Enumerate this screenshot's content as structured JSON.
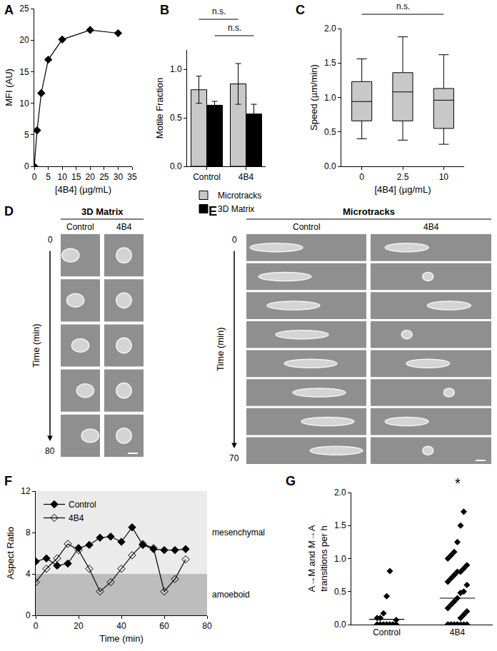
{
  "chart_data": [
    {
      "type": "line",
      "title": "A",
      "x": [
        0,
        1,
        2.5,
        5,
        10,
        20,
        30
      ],
      "values": [
        0,
        5.7,
        11.6,
        16.9,
        20.1,
        21.6,
        21.1
      ],
      "color": "#000000",
      "marker": "diamond",
      "x_label": "[4B4] (µg/mL)",
      "y_label": "MFI (AU)",
      "xlim": [
        0,
        35
      ],
      "xticks": [
        0,
        5,
        10,
        15,
        20,
        25,
        30,
        35
      ],
      "ylim": [
        0,
        25
      ],
      "yticks": [
        0,
        5,
        10,
        15,
        20,
        25
      ]
    },
    {
      "type": "bar",
      "title": "B",
      "categories": [
        "Control",
        "4B4"
      ],
      "series": [
        {
          "name": "Microtracks",
          "color": "#c8c8c8",
          "values": [
            0.79,
            0.85
          ],
          "errors": [
            0.14,
            0.21
          ]
        },
        {
          "name": "3D Matrix",
          "color": "#000000",
          "values": [
            0.63,
            0.54
          ],
          "errors": [
            0.04,
            0.1
          ]
        }
      ],
      "y_label": "Motile Fraction",
      "ylim": [
        0,
        1.2
      ],
      "yticks": [
        {
          "value": 0,
          "label": "0.0"
        },
        {
          "value": 0.5,
          "label": "0.5"
        },
        {
          "value": 1,
          "label": "1.0"
        }
      ],
      "legend": "bottom right",
      "annotations": [
        {
          "text": "n.s.",
          "series": "Microtracks"
        },
        {
          "text": "n.s.",
          "series": "3D Matrix"
        }
      ]
    },
    {
      "type": "box",
      "title": "C",
      "categories": [
        "0",
        "2.5",
        "10"
      ],
      "boxes": {
        "whisker_low": [
          0.4,
          0.38,
          0.32
        ],
        "q1": [
          0.66,
          0.66,
          0.55
        ],
        "median": [
          0.94,
          1.08,
          0.96
        ],
        "q3": [
          1.23,
          1.36,
          1.13
        ],
        "whisker_high": [
          1.56,
          1.88,
          1.62
        ]
      },
      "color": "#c8c8c8",
      "x_label": "[4B4] (µg/mL)",
      "y_label": "Speed (µm/min)",
      "ylim": [
        0,
        2
      ],
      "yticks": [
        {
          "value": 0,
          "label": "0.0"
        },
        {
          "value": 0.5,
          "label": "0.5"
        },
        {
          "value": 1,
          "label": "1.0"
        },
        {
          "value": 1.5,
          "label": "1.5"
        },
        {
          "value": 2,
          "label": "2.0"
        }
      ],
      "annotations": [
        {
          "text": "n.s."
        }
      ]
    },
    {
      "type": "line",
      "title": "F",
      "x": [
        0,
        5,
        10,
        15,
        20,
        25,
        30,
        35,
        40,
        45,
        50,
        55,
        60,
        65,
        70
      ],
      "series": [
        {
          "name": "Control",
          "color": "#000000",
          "marker": "diamond",
          "values": [
            5.2,
            5.5,
            4.8,
            5.0,
            6.5,
            6.8,
            7.5,
            7.6,
            7.1,
            8.5,
            6.8,
            6.4,
            6.3,
            6.3,
            6.4
          ]
        },
        {
          "name": "4B4",
          "color": "#000000",
          "marker": "diamond-open",
          "values": [
            3.2,
            4.5,
            5.5,
            6.9,
            6.3,
            4.5,
            2.3,
            3.2,
            4.5,
            5.8,
            6.9,
            6.5,
            2.3,
            3.5,
            5.4
          ]
        }
      ],
      "x_label": "Time (min)",
      "y_label": "Aspect Ratio",
      "xlim": [
        0,
        80
      ],
      "xticks": [
        0,
        20,
        40,
        60,
        80
      ],
      "ylim": [
        0,
        12
      ],
      "yticks": [
        0,
        4,
        8,
        12
      ],
      "legend": "upper left",
      "regions": [
        {
          "label": "mesenchymal",
          "ymin": 4,
          "ymax": 12,
          "color": "#ebebeb"
        },
        {
          "label": "amoeboid",
          "ymin": 0,
          "ymax": 4,
          "color": "#bdbdbd"
        }
      ]
    },
    {
      "type": "strip",
      "title": "G",
      "categories": [
        "Control",
        "4B4"
      ],
      "values": [
        [
          0,
          0,
          0,
          0,
          0,
          0,
          0,
          0,
          0,
          0,
          0,
          0,
          0,
          0,
          0,
          0,
          0,
          0,
          0,
          0,
          0.07,
          0.1,
          0.1,
          0.17,
          0.43,
          0.81
        ],
        [
          0,
          0,
          0,
          0,
          0,
          0,
          0,
          0,
          0,
          0,
          0,
          0,
          0,
          0,
          0,
          0,
          0,
          0,
          0.1,
          0.15,
          0.2,
          0.25,
          0.3,
          0.35,
          0.4,
          0.48,
          0.5,
          0.6,
          0.65,
          0.7,
          0.75,
          0.8,
          0.8,
          0.85,
          0.9,
          1.0,
          1.05,
          1.1,
          1.25,
          1.5,
          1.71
        ]
      ],
      "means": [
        0.08,
        0.4
      ],
      "color": "#000000",
      "marker": "diamond",
      "y_label": "A→M and M→A\ntransitions per h",
      "ylim": [
        0,
        2
      ],
      "yticks": [
        {
          "value": 0,
          "label": "0.0"
        },
        {
          "value": 0.5,
          "label": "0.5"
        },
        {
          "value": 1,
          "label": "1.0"
        },
        {
          "value": 1.5,
          "label": "1.5"
        },
        {
          "value": 2,
          "label": "2.0"
        }
      ],
      "annotations": [
        {
          "text": "*",
          "category": "4B4"
        }
      ]
    }
  ],
  "image_panels": [
    {
      "label": "D",
      "title": "3D Matrix",
      "columns": [
        "Control",
        "4B4"
      ],
      "axis_label": "Time (min)",
      "start_label": "0",
      "end_label": "80",
      "frames": 5
    },
    {
      "label": "E",
      "title": "Microtracks",
      "columns": [
        "Control",
        "4B4"
      ],
      "axis_label": "Time (min)",
      "start_label": "0",
      "end_label": "70",
      "frames": 8
    }
  ]
}
